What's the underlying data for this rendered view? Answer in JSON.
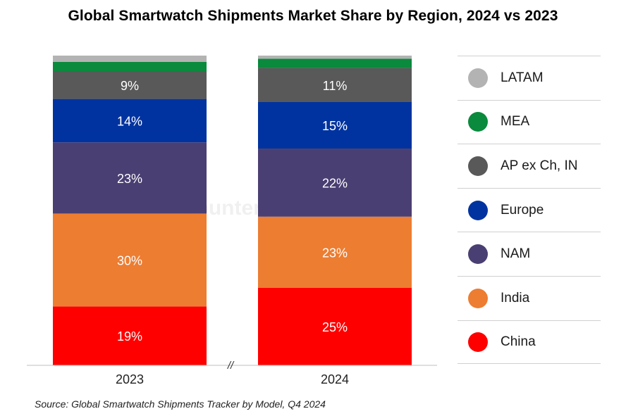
{
  "title": "Global Smartwatch Shipments Market Share by Region, 2024 vs 2023",
  "source": "Source: Global Smartwatch Shipments Tracker by Model, Q4 2024",
  "watermark": "Counterpoint",
  "axis_break": "//",
  "chart_data": {
    "type": "bar",
    "stacked": true,
    "categories": [
      "2023",
      "2024"
    ],
    "ylim": [
      0,
      100
    ],
    "series": [
      {
        "name": "China",
        "color": "#ff0000",
        "values": [
          19,
          25
        ],
        "labels": [
          "19%",
          "25%"
        ]
      },
      {
        "name": "India",
        "color": "#ed7d31",
        "values": [
          30,
          23
        ],
        "labels": [
          "30%",
          "23%"
        ]
      },
      {
        "name": "NAM",
        "color": "#4a3f72",
        "values": [
          23,
          22
        ],
        "labels": [
          "23%",
          "22%"
        ]
      },
      {
        "name": "Europe",
        "color": "#0033a0",
        "values": [
          14,
          15
        ],
        "labels": [
          "14%",
          "15%"
        ]
      },
      {
        "name": "AP ex Ch, IN",
        "color": "#595959",
        "values": [
          9,
          11
        ],
        "labels": [
          "9%",
          "11%"
        ]
      },
      {
        "name": "MEA",
        "color": "#0a8a3c",
        "values": [
          3,
          3
        ],
        "labels": [
          "",
          ""
        ]
      },
      {
        "name": "LATAM",
        "color": "#b3b3b3",
        "values": [
          2,
          1
        ],
        "labels": [
          "",
          ""
        ]
      }
    ],
    "legend_order": [
      "LATAM",
      "MEA",
      "AP ex Ch, IN",
      "Europe",
      "NAM",
      "India",
      "China"
    ],
    "legend_position": "right"
  }
}
